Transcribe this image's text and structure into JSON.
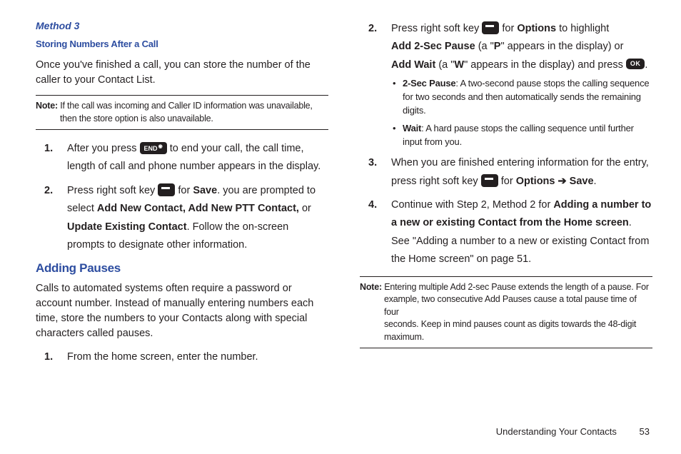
{
  "left": {
    "method_title": "Method 3",
    "storing_title": "Storing Numbers After a Call",
    "intro": "Once you've finished a call, you can store the number of the caller to your Contact List.",
    "note_label": "Note:",
    "note_text_line1": "If the call was incoming and Caller ID information was unavailable,",
    "note_text_line2": "then the store option is also unavailable.",
    "step1_a": "After you press ",
    "end_key": "END",
    "step1_b": " to end your call, the call time, length of call and phone number appears in the display.",
    "step2_a": "Press right soft key ",
    "step2_b": " for ",
    "save": "Save",
    "step2_c": ". you are prompted to select ",
    "add_new_contact": "Add New Contact, Add New PTT Contact,",
    "or": " or ",
    "update_existing": "Update Existing Contact",
    "step2_d": ". Follow the on-screen prompts to designate other information.",
    "adding_pauses": "Adding Pauses",
    "pauses_body": "Calls to automated systems often require a password or account number. Instead of manually entering numbers each time, store the numbers to your Contacts along with special characters called pauses.",
    "p_step1": "From the home screen, enter the number."
  },
  "right": {
    "s2_a": "Press right soft key ",
    "s2_b": " for ",
    "options": "Options",
    "s2_c": " to highlight",
    "add2sec": "Add 2-Sec Pause",
    "s2_d": " (a \"",
    "p_letter": "P",
    "s2_e": "\" appears in the display) or",
    "addwait": "Add Wait",
    "s2_f": " (a \"",
    "w_letter": "W",
    "s2_g": "\" appears in the display) and press ",
    "ok": "OK",
    "period": ".",
    "b1_label": "2-Sec Pause",
    "b1_text": ": A two-second pause stops the calling sequence for two seconds and then automatically sends the remaining digits.",
    "b2_label": "Wait",
    "b2_text": ": A hard pause stops the calling sequence until further input from you.",
    "s3_a": "When you are finished entering information for the entry, press right soft key ",
    "s3_b": " for ",
    "opt_save": "Options ➔ Save",
    "s4_a": "Continue with Step 2, Method 2 for ",
    "s4_bold": "Adding a number to a new or existing Contact from the Home screen",
    "s4_b": ". See \"Adding a number to a new or existing Contact from the Home screen\" on page 51.",
    "note_label": "Note:",
    "note_l1": "Entering multiple Add 2-sec Pause extends the length of a pause. For",
    "note_l2": "example, two consecutive Add Pauses cause a total pause time of four",
    "note_l3": "seconds. Keep in mind pauses count as digits towards the 48-digit",
    "note_l4": "maximum."
  },
  "footer": {
    "section": "Understanding Your Contacts",
    "page": "53"
  }
}
